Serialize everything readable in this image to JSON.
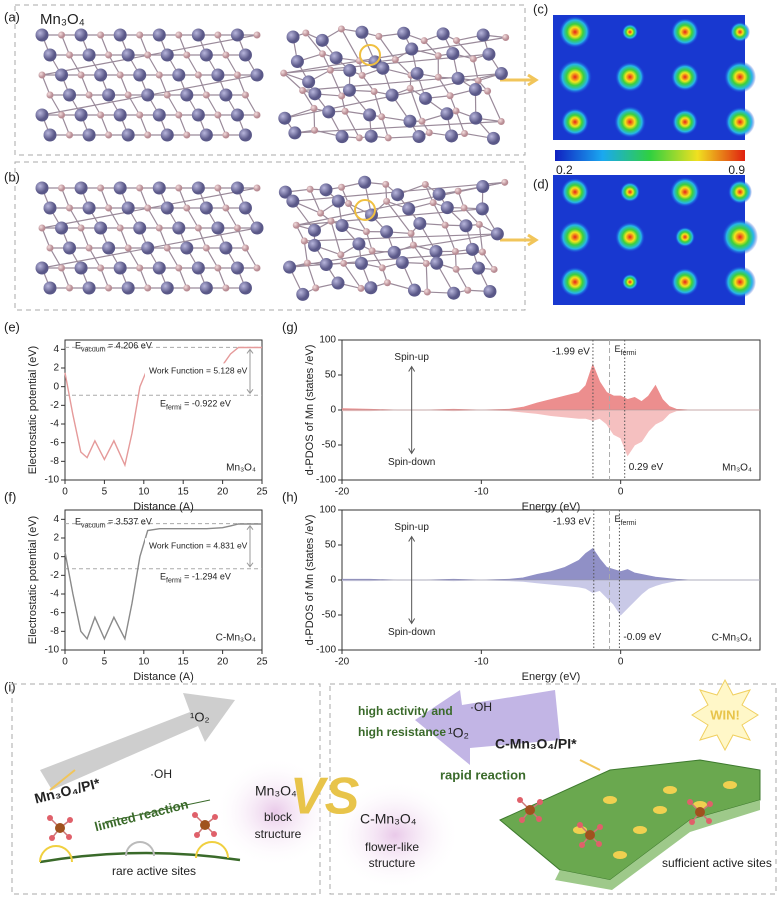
{
  "panel_labels": [
    "(a)",
    "(b)",
    "(c)",
    "(d)",
    "(e)",
    "(f)",
    "(g)",
    "(h)",
    "(i)"
  ],
  "structure_label": "Mn₃O₄",
  "colorbar": {
    "range": [
      0.2,
      0.9
    ]
  },
  "chart_data": [
    {
      "type": "line",
      "xlabel": "Distance (A)",
      "ylabel": "Electrostatic potential (eV)",
      "x": [
        0,
        1,
        2,
        2.8,
        3.8,
        5,
        6.2,
        7.6,
        8.5,
        9.5,
        10.5,
        12,
        15,
        18,
        20,
        21,
        22,
        23,
        25
      ],
      "series": [
        {
          "name": "Mn₃O₄",
          "color": "#e59a9a",
          "values": [
            1.5,
            -3,
            -7,
            -7.6,
            -5.8,
            -7.8,
            -5.8,
            -8.4,
            -5,
            0,
            2,
            2.2,
            2.2,
            2.2,
            2.3,
            3.5,
            4.2,
            4.2,
            4.2
          ]
        }
      ],
      "xlim": [
        0,
        25
      ],
      "xticks": [
        0,
        5,
        10,
        15,
        20,
        25
      ],
      "ylim": [
        -10,
        5
      ],
      "yticks": [
        -10,
        -8,
        -6,
        -4,
        -2,
        0,
        2,
        4
      ],
      "levels": [
        {
          "symbol": "E",
          "sub": "vacuum",
          "text": " = 4.206 eV",
          "value": 4.206
        },
        {
          "symbol": "E",
          "sub": "fermi",
          "text": " = -0.922 eV",
          "value": -0.922
        }
      ],
      "annotation": "Work Function = 5.128 eV"
    },
    {
      "type": "area",
      "xlabel": "Energy (eV)",
      "ylabel": "d-PDOS of Mn (states /eV)",
      "x": [
        -20,
        -18,
        -16,
        -14,
        -12,
        -10,
        -8,
        -7,
        -6,
        -5,
        -4,
        -3,
        -2.5,
        -2,
        -1.5,
        -1,
        -0.5,
        0,
        0.5,
        1,
        1.5,
        2,
        2.5,
        3,
        3.5,
        4,
        5,
        7,
        10
      ],
      "series": [
        {
          "name": "Spin-up",
          "color": "#ec8e8e",
          "values": [
            2,
            1,
            0,
            0,
            1,
            0,
            1,
            4,
            10,
            15,
            20,
            25,
            35,
            65,
            40,
            25,
            20,
            20,
            15,
            18,
            12,
            20,
            35,
            15,
            5,
            1,
            0,
            0,
            0
          ]
        },
        {
          "name": "Spin-down",
          "color": "#f5c0c0",
          "values": [
            -1,
            -1,
            0,
            0,
            -1,
            0,
            -1,
            -3,
            -5,
            -8,
            -10,
            -12,
            -12,
            -15,
            -12,
            -20,
            -35,
            -40,
            -65,
            -50,
            -45,
            -30,
            -20,
            -15,
            -5,
            -1,
            0,
            0,
            0
          ]
        }
      ],
      "xlim": [
        -20,
        10
      ],
      "xticks": [
        -20,
        -10,
        0
      ],
      "ylim": [
        -100,
        100
      ],
      "yticks": [
        -100,
        -50,
        0,
        50,
        100
      ],
      "markers": [
        {
          "value": -1.99,
          "label": "-1.99 eV"
        },
        {
          "value": 0.29,
          "label": "0.29 eV"
        }
      ],
      "fermi": {
        "symbol": "E",
        "sub": "fermi",
        "value": -0.8
      },
      "sample": "Mn₃O₄"
    },
    {
      "type": "line",
      "xlabel": "Distance (A)",
      "ylabel": "Electrostatic potential (eV)",
      "x": [
        0,
        1,
        2,
        2.8,
        3.8,
        5,
        6.2,
        7.6,
        8.5,
        9.5,
        10.5,
        12,
        15,
        18,
        20,
        21,
        22,
        23,
        25
      ],
      "series": [
        {
          "name": "C-Mn₃O₄",
          "color": "#8a8a8a",
          "values": [
            0.5,
            -4,
            -8,
            -8.8,
            -6.5,
            -8.8,
            -6.5,
            -8.8,
            -5,
            0,
            2.8,
            3,
            3,
            3,
            3.1,
            3.3,
            3.5,
            3.5,
            3.5
          ]
        }
      ],
      "xlim": [
        0,
        25
      ],
      "xticks": [
        0,
        5,
        10,
        15,
        20,
        25
      ],
      "ylim": [
        -10,
        5
      ],
      "yticks": [
        -10,
        -8,
        -6,
        -4,
        -2,
        0,
        2,
        4
      ],
      "levels": [
        {
          "symbol": "E",
          "sub": "vacuum",
          "text": " = 3.537 eV",
          "value": 3.537
        },
        {
          "symbol": "E",
          "sub": "fermi",
          "text": " = -1.294 eV",
          "value": -1.294
        }
      ],
      "annotation": "Work Function = 4.831 eV"
    },
    {
      "type": "area",
      "xlabel": "Energy (eV)",
      "ylabel": "d-PDOS of Mn (states /eV)",
      "x": [
        -20,
        -18,
        -16,
        -14,
        -12,
        -10,
        -8,
        -7,
        -6,
        -5,
        -4,
        -3,
        -2.5,
        -2,
        -1.5,
        -1,
        -0.5,
        0,
        0.5,
        1,
        1.5,
        2,
        2.5,
        3,
        3.5,
        4,
        5,
        7,
        10
      ],
      "series": [
        {
          "name": "Spin-up",
          "color": "#9090c6",
          "values": [
            1,
            1,
            0,
            0,
            1,
            0,
            1,
            3,
            8,
            12,
            18,
            28,
            38,
            45,
            30,
            18,
            15,
            12,
            15,
            10,
            8,
            6,
            4,
            3,
            2,
            1,
            0,
            0,
            0
          ]
        },
        {
          "name": "Spin-down",
          "color": "#c9c9e7",
          "values": [
            -1,
            -1,
            0,
            0,
            -1,
            0,
            -1,
            -2,
            -4,
            -6,
            -8,
            -10,
            -12,
            -18,
            -15,
            -25,
            -35,
            -50,
            -40,
            -30,
            -20,
            -12,
            -8,
            -5,
            -3,
            -1,
            0,
            0,
            0
          ]
        }
      ],
      "xlim": [
        -20,
        10
      ],
      "xticks": [
        -20,
        -10,
        0
      ],
      "ylim": [
        -100,
        100
      ],
      "yticks": [
        -100,
        -50,
        0,
        50,
        100
      ],
      "markers": [
        {
          "value": -1.93,
          "label": "-1.93 eV"
        },
        {
          "value": -0.09,
          "label": "-0.09 eV"
        }
      ],
      "fermi": {
        "symbol": "E",
        "sub": "fermi",
        "value": -0.8
      },
      "sample": "C-Mn₃O₄"
    }
  ],
  "schematic": {
    "left": {
      "oxygen": "¹O₂",
      "hydroxyl": "·OH",
      "catalyst": "Mn₃O₄/PI*",
      "reaction": "limited reaction",
      "sites": "rare active sites",
      "material": "Mn₃O₄",
      "morphology": [
        "block",
        "structure"
      ]
    },
    "versus": "VS",
    "right": {
      "material": "C-Mn₃O₄",
      "morphology": [
        "flower-like",
        "structure"
      ],
      "activity": [
        "high activity and",
        "high resistance"
      ],
      "hydroxyl": "·OH",
      "oxygen": "¹O₂",
      "catalyst": "C-Mn₃O₄/PI*",
      "reaction": "rapid reaction",
      "sites": "sufficient active sites",
      "badge": "WIN!"
    }
  }
}
